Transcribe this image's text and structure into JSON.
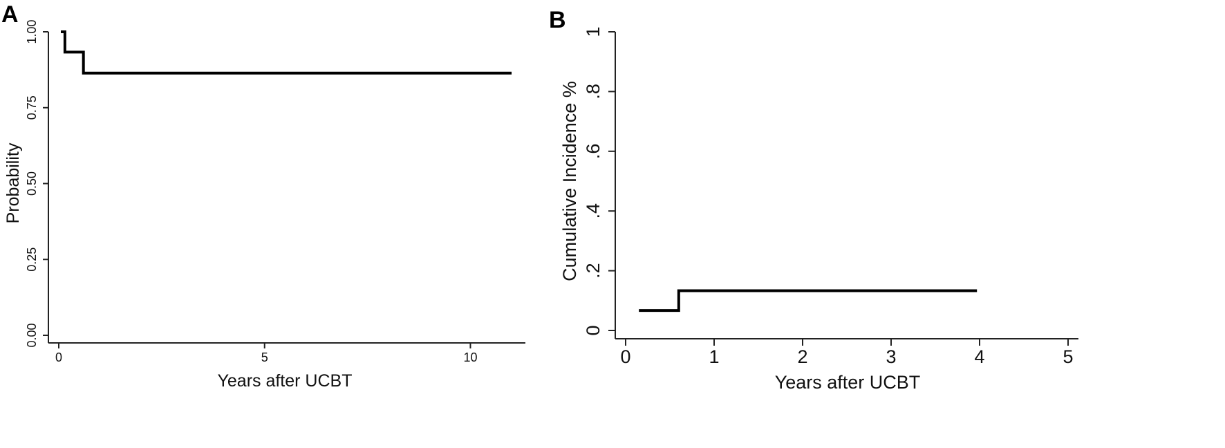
{
  "chart_data": [
    {
      "type": "line",
      "step": true,
      "panel_label": "A",
      "title": "",
      "xlabel": "Years after UCBT",
      "ylabel": "Probability",
      "xlim": [
        0,
        11
      ],
      "ylim": [
        0,
        1
      ],
      "x_ticks": [
        0,
        5,
        10
      ],
      "y_ticks": [
        0,
        0.25,
        0.5,
        0.75,
        1.0
      ],
      "y_tick_labels": [
        "0.00",
        "0.25",
        "0.50",
        "0.75",
        "1.00"
      ],
      "x_tick_labels": [
        "0",
        "5",
        "10"
      ],
      "grid": false,
      "series": [
        {
          "x": [
            0.05,
            0.15,
            0.15,
            0.6,
            0.6,
            11.0
          ],
          "y": [
            1.0,
            1.0,
            0.933,
            0.933,
            0.864,
            0.864
          ]
        }
      ]
    },
    {
      "type": "line",
      "step": true,
      "panel_label": "B",
      "title": "",
      "xlabel": "Years after UCBT",
      "ylabel": "Cumulative Incidence %",
      "xlim": [
        0,
        5
      ],
      "ylim": [
        0,
        1
      ],
      "x_ticks": [
        0,
        1,
        2,
        3,
        4,
        5
      ],
      "y_ticks": [
        0,
        0.2,
        0.4,
        0.6,
        0.8,
        1
      ],
      "y_tick_labels": [
        "0",
        ".2",
        ".4",
        ".6",
        ".8",
        "1"
      ],
      "x_tick_labels": [
        "0",
        "1",
        "2",
        "3",
        "4",
        "5"
      ],
      "grid": false,
      "series": [
        {
          "x": [
            0.15,
            0.6,
            0.6,
            3.97
          ],
          "y": [
            0.067,
            0.067,
            0.133,
            0.133
          ]
        }
      ]
    }
  ]
}
